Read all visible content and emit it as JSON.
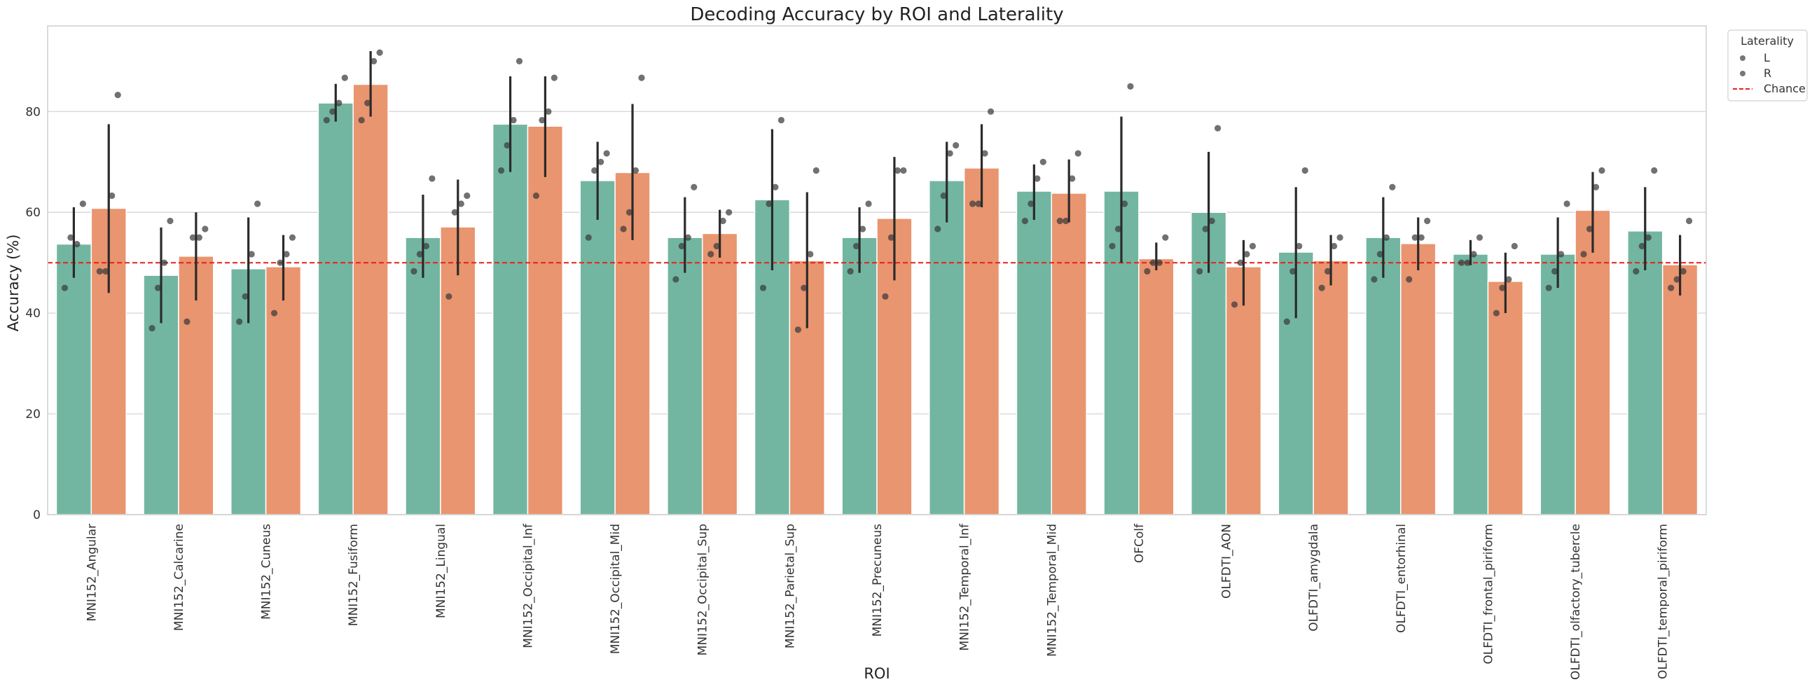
{
  "chart_data": {
    "type": "bar",
    "title": "Decoding Accuracy by ROI and Laterality",
    "xlabel": "ROI",
    "ylabel": "Accuracy (%)",
    "ylim": [
      0,
      97
    ],
    "yticks": [
      0,
      20,
      40,
      60,
      80
    ],
    "grid": "horizontal",
    "legend_placement": "outside-top-right",
    "categories": [
      "MNI152_Angular",
      "MNI152_Calcarine",
      "MNI152_Cuneus",
      "MNI152_Fusiform",
      "MNI152_Lingual",
      "MNI152_Occipital_Inf",
      "MNI152_Occipital_Mid",
      "MNI152_Occipital_Sup",
      "MNI152_Parietal_Sup",
      "MNI152_Precuneus",
      "MNI152_Temporal_Inf",
      "MNI152_Temporal_Mid",
      "OFColf",
      "OLFDTI_AON",
      "OLFDTI_amygdala",
      "OLFDTI_entorhinal",
      "OLFDTI_frontal_piriform",
      "OLFDTI_olfactory_tubercle",
      "OLFDTI_temporal_piriform"
    ],
    "series": [
      {
        "name": "L",
        "color": "#72b6a1",
        "values": [
          53.7,
          47.5,
          48.8,
          81.7,
          55.0,
          77.5,
          66.3,
          55.0,
          62.5,
          55.0,
          66.3,
          64.2,
          64.2,
          60.0,
          52.1,
          55.0,
          51.7,
          51.7,
          56.3
        ],
        "ci": [
          [
            47,
            61
          ],
          [
            38,
            57
          ],
          [
            38,
            59
          ],
          [
            78,
            85.5
          ],
          [
            47,
            63.5
          ],
          [
            68,
            87
          ],
          [
            58.5,
            74
          ],
          [
            48,
            63
          ],
          [
            48.5,
            76.5
          ],
          [
            48,
            61
          ],
          [
            58,
            74
          ],
          [
            58.5,
            69.5
          ],
          [
            50,
            79
          ],
          [
            48,
            72
          ],
          [
            39,
            65
          ],
          [
            47,
            63
          ],
          [
            49.5,
            54.5
          ],
          [
            45,
            59
          ],
          [
            48.5,
            65
          ]
        ],
        "points": [
          [
            45,
            55,
            53.7,
            61.7
          ],
          [
            37,
            45,
            50,
            58.3
          ],
          [
            38.3,
            43.3,
            51.7,
            61.7
          ],
          [
            78.3,
            80,
            81.7,
            86.7
          ],
          [
            48.3,
            51.7,
            53.3,
            66.7
          ],
          [
            68.3,
            73.3,
            78.3,
            90
          ],
          [
            55,
            68.3,
            70,
            71.7
          ],
          [
            46.7,
            53.3,
            55,
            65
          ],
          [
            45,
            61.7,
            65,
            78.3
          ],
          [
            48.3,
            53.3,
            56.7,
            61.7
          ],
          [
            56.7,
            63.3,
            71.7,
            73.3
          ],
          [
            58.3,
            61.7,
            66.7,
            70
          ],
          [
            53.3,
            56.7,
            61.7,
            85
          ],
          [
            48.3,
            56.7,
            58.3,
            76.7
          ],
          [
            38.3,
            48.3,
            53.3,
            68.3
          ],
          [
            46.7,
            51.7,
            55,
            65
          ],
          [
            50,
            50,
            51.7,
            55
          ],
          [
            45,
            48.3,
            51.7,
            61.7
          ],
          [
            48.3,
            53.3,
            55,
            68.3
          ]
        ]
      },
      {
        "name": "R",
        "color": "#e9956f",
        "values": [
          60.8,
          51.3,
          49.2,
          85.4,
          57.1,
          77.1,
          67.9,
          55.8,
          50.4,
          58.8,
          68.8,
          63.8,
          50.8,
          49.2,
          50.4,
          53.8,
          46.3,
          60.4,
          49.6
        ],
        "ci": [
          [
            44,
            77.5
          ],
          [
            42.5,
            60
          ],
          [
            42.5,
            55.5
          ],
          [
            79,
            92
          ],
          [
            47.5,
            66.5
          ],
          [
            67,
            87
          ],
          [
            54.5,
            81.5
          ],
          [
            51,
            60.5
          ],
          [
            37,
            64
          ],
          [
            46.5,
            71
          ],
          [
            61,
            77.5
          ],
          [
            58,
            70.5
          ],
          [
            48.5,
            54
          ],
          [
            41.5,
            54.5
          ],
          [
            45.5,
            55.5
          ],
          [
            48.5,
            59
          ],
          [
            40,
            52
          ],
          [
            52,
            68
          ],
          [
            43.5,
            55.5
          ]
        ],
        "points": [
          [
            48.3,
            48.3,
            63.3,
            83.3
          ],
          [
            38.3,
            55,
            55,
            56.7
          ],
          [
            40,
            50,
            51.7,
            55
          ],
          [
            78.3,
            81.7,
            90,
            91.7
          ],
          [
            43.3,
            60,
            61.7,
            63.3
          ],
          [
            63.3,
            78.3,
            80,
            86.7
          ],
          [
            56.7,
            60,
            68.3,
            86.7
          ],
          [
            51.7,
            53.3,
            58.3,
            60
          ],
          [
            36.7,
            45,
            51.7,
            68.3
          ],
          [
            43.3,
            55,
            68.3,
            68.3
          ],
          [
            61.7,
            61.7,
            71.7,
            80
          ],
          [
            58.3,
            58.3,
            66.7,
            71.7
          ],
          [
            48.3,
            50,
            50,
            55
          ],
          [
            41.7,
            50,
            51.7,
            53.3
          ],
          [
            45,
            48.3,
            53.3,
            55
          ],
          [
            46.7,
            55,
            55,
            58.3
          ],
          [
            40,
            45,
            46.7,
            53.3
          ],
          [
            51.7,
            56.7,
            65,
            68.3
          ],
          [
            45,
            46.7,
            48.3,
            58.3
          ]
        ]
      }
    ],
    "reference_line": {
      "value": 50,
      "label": "Chance",
      "color": "#e8201c",
      "style": "dashed"
    },
    "legend": {
      "title": "Laterality",
      "entries": [
        "L",
        "R",
        "Chance"
      ]
    }
  }
}
